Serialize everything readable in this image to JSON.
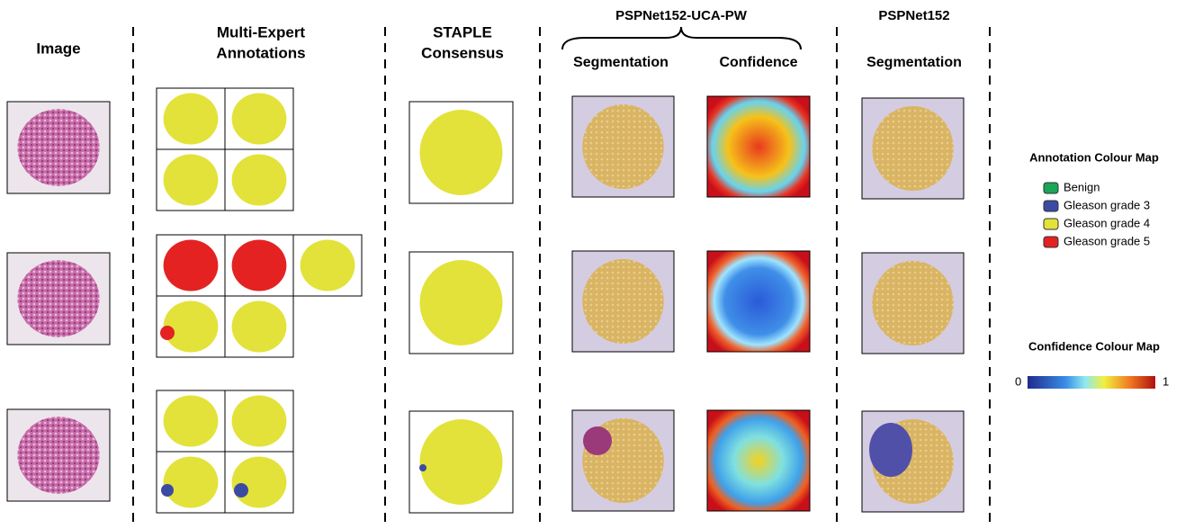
{
  "headers": {
    "image": "Image",
    "annotations": [
      "Multi-Expert",
      "Annotations"
    ],
    "staple": [
      "STAPLE",
      "Consensus"
    ],
    "uca": {
      "title": "PSPNet152-UCA-PW",
      "segmentation": "Segmentation",
      "confidence": "Confidence"
    },
    "baseline": {
      "title": "PSPNet152",
      "segmentation": "Segmentation"
    }
  },
  "annotation_legend": {
    "title": "Annotation Colour Map",
    "items": [
      {
        "name": "Benign",
        "color": "#1aa55a"
      },
      {
        "name": "Gleason grade 3",
        "color": "#3b4ba3"
      },
      {
        "name": "Gleason grade 4",
        "color": "#e2e23a"
      },
      {
        "name": "Gleason grade 5",
        "color": "#e42222"
      }
    ]
  },
  "confidence_legend": {
    "title": "Confidence Colour Map",
    "min": "0",
    "max": "1"
  }
}
